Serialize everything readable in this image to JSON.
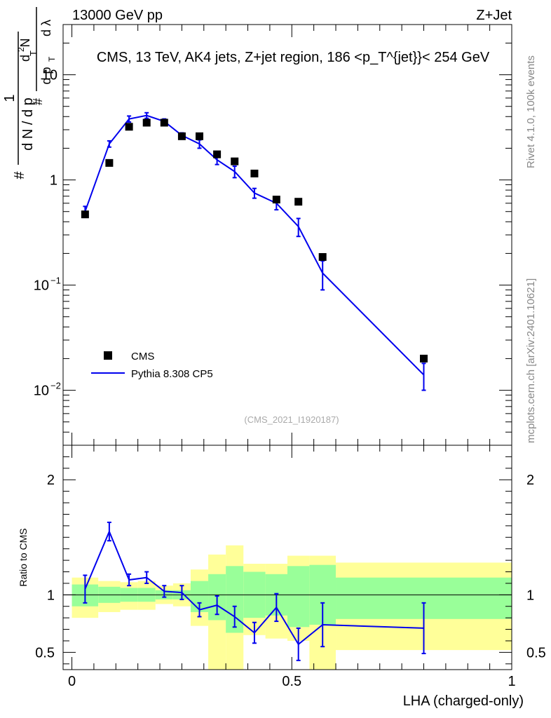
{
  "header": {
    "energy_label": "13000 GeV pp",
    "process_label": "Z+Jet"
  },
  "side_labels": {
    "rivet": "Rivet 4.1.0,  100k events",
    "mcplots": "mcplots.cern.ch [arXiv:2401.10621]"
  },
  "colors": {
    "mc_line": "#0000ee",
    "data_marker": "#000000",
    "band_inner": "#99ff99",
    "band_outer": "#ffff99"
  },
  "chart_data": [
    {
      "type": "scatter",
      "title": "CMS, 13 TeV, AK4 jets, Z+jet region, 186 <p_T^{jet}}< 254 GeV",
      "watermark": "(CMS_2021_I1920187)",
      "xlabel": "",
      "ylabel": "(1/dN/dp_T) d²N/(dp_T dλ)",
      "ylabel_parts": [
        "1",
        "d N / d p",
        "T",
        "#",
        "d",
        "2",
        "N",
        "d p",
        "T",
        "d λ",
        "#"
      ],
      "yscale": "log",
      "xlim": [
        -0.02,
        1.0
      ],
      "ylim": [
        0.003,
        30
      ],
      "y_ticks": [
        {
          "value": 0.01,
          "label": "10",
          "exp": "−2"
        },
        {
          "value": 0.1,
          "label": "10",
          "exp": "−1"
        },
        {
          "value": 1,
          "label": "1",
          "exp": ""
        },
        {
          "value": 10,
          "label": "10",
          "exp": ""
        }
      ],
      "legend": {
        "position": "bottom-left",
        "entries": [
          {
            "name": "CMS",
            "kind": "marker"
          },
          {
            "name": "Pythia 8.308 CP5",
            "kind": "line"
          }
        ]
      },
      "series": [
        {
          "name": "CMS",
          "x": [
            0.03,
            0.085,
            0.13,
            0.17,
            0.21,
            0.25,
            0.29,
            0.33,
            0.37,
            0.415,
            0.465,
            0.515,
            0.57,
            0.8
          ],
          "y": [
            0.47,
            1.45,
            3.2,
            3.5,
            3.5,
            2.6,
            2.6,
            1.75,
            1.5,
            1.15,
            0.65,
            0.62,
            0.185,
            0.02
          ]
        },
        {
          "name": "Pythia 8.308 CP5",
          "x": [
            0.03,
            0.085,
            0.13,
            0.17,
            0.21,
            0.25,
            0.29,
            0.33,
            0.37,
            0.415,
            0.465,
            0.515,
            0.57,
            0.8
          ],
          "y": [
            0.5,
            2.2,
            3.8,
            4.1,
            3.6,
            2.65,
            2.2,
            1.55,
            1.2,
            0.75,
            0.6,
            0.36,
            0.13,
            0.014
          ],
          "yerr": [
            0.06,
            0.15,
            0.25,
            0.25,
            0.2,
            0.15,
            0.2,
            0.15,
            0.15,
            0.08,
            0.08,
            0.07,
            0.04,
            0.004
          ]
        }
      ]
    },
    {
      "type": "line",
      "title": "",
      "xlabel": "LHA (charged-only)",
      "ylabel": "Ratio to CMS",
      "xlim": [
        -0.02,
        1.0
      ],
      "ylim": [
        0.35,
        2.3
      ],
      "x_ticks": [
        {
          "value": 0,
          "label": "0"
        },
        {
          "value": 0.5,
          "label": "0.5"
        },
        {
          "value": 1,
          "label": "1"
        }
      ],
      "y_ticks": [
        {
          "value": 0.5,
          "label": "0.5"
        },
        {
          "value": 1,
          "label": "1"
        },
        {
          "value": 2,
          "label": "2"
        }
      ],
      "uncertainty_bands": [
        {
          "x0": 0.0,
          "x1": 0.06,
          "inner": [
            0.9,
            1.09
          ],
          "outer": [
            0.8,
            1.15
          ]
        },
        {
          "x0": 0.06,
          "x1": 0.11,
          "inner": [
            0.93,
            1.07
          ],
          "outer": [
            0.85,
            1.12
          ]
        },
        {
          "x0": 0.11,
          "x1": 0.15,
          "inner": [
            0.94,
            1.06
          ],
          "outer": [
            0.87,
            1.11
          ]
        },
        {
          "x0": 0.15,
          "x1": 0.19,
          "inner": [
            0.94,
            1.06
          ],
          "outer": [
            0.87,
            1.12
          ]
        },
        {
          "x0": 0.19,
          "x1": 0.23,
          "inner": [
            0.96,
            1.04
          ],
          "outer": [
            0.92,
            1.08
          ]
        },
        {
          "x0": 0.23,
          "x1": 0.27,
          "inner": [
            0.96,
            1.04
          ],
          "outer": [
            0.9,
            1.1
          ]
        },
        {
          "x0": 0.27,
          "x1": 0.31,
          "inner": [
            0.85,
            1.12
          ],
          "outer": [
            0.73,
            1.22
          ]
        },
        {
          "x0": 0.31,
          "x1": 0.35,
          "inner": [
            0.78,
            1.18
          ],
          "outer": [
            0.3,
            1.35
          ]
        },
        {
          "x0": 0.35,
          "x1": 0.39,
          "inner": [
            0.67,
            1.25
          ],
          "outer": [
            0.3,
            1.43
          ]
        },
        {
          "x0": 0.39,
          "x1": 0.44,
          "inner": [
            0.8,
            1.2
          ],
          "outer": [
            0.65,
            1.27
          ]
        },
        {
          "x0": 0.44,
          "x1": 0.49,
          "inner": [
            0.82,
            1.18
          ],
          "outer": [
            0.62,
            1.27
          ]
        },
        {
          "x0": 0.49,
          "x1": 0.54,
          "inner": [
            0.72,
            1.25
          ],
          "outer": [
            0.6,
            1.34
          ]
        },
        {
          "x0": 0.54,
          "x1": 0.6,
          "inner": [
            0.74,
            1.26
          ],
          "outer": [
            0.3,
            1.34
          ]
        },
        {
          "x0": 0.6,
          "x1": 1.0,
          "inner": [
            0.79,
            1.15
          ],
          "outer": [
            0.52,
            1.28
          ]
        }
      ],
      "series": [
        {
          "name": "Pythia 8.308 CP5 / CMS",
          "x": [
            0.03,
            0.085,
            0.13,
            0.17,
            0.21,
            0.25,
            0.29,
            0.33,
            0.37,
            0.415,
            0.465,
            0.515,
            0.57,
            0.8
          ],
          "y": [
            1.05,
            1.55,
            1.13,
            1.15,
            1.03,
            1.02,
            0.87,
            0.91,
            0.81,
            0.67,
            0.89,
            0.57,
            0.74,
            0.71
          ],
          "yerr": [
            0.12,
            0.08,
            0.05,
            0.05,
            0.05,
            0.06,
            0.06,
            0.08,
            0.09,
            0.09,
            0.12,
            0.14,
            0.19,
            0.22
          ]
        }
      ]
    }
  ]
}
